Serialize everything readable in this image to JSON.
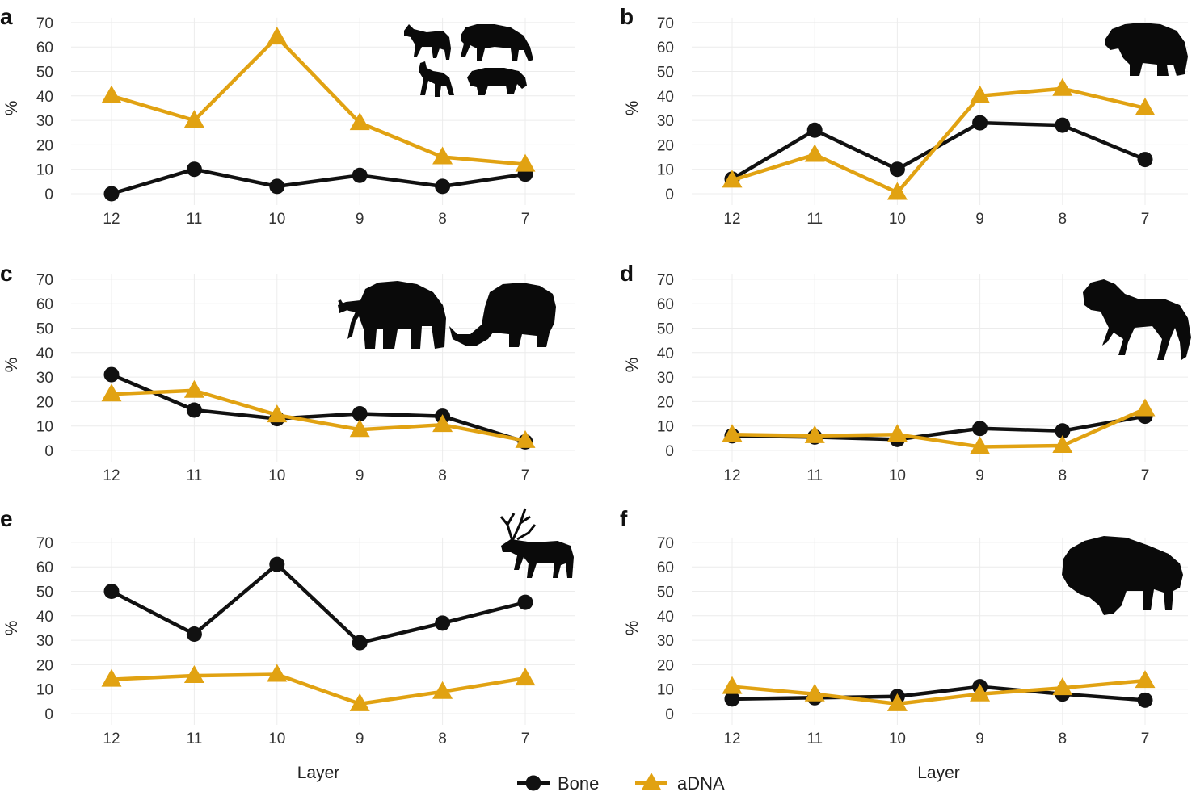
{
  "colors": {
    "bone": "#111111",
    "adna": "#E1A212",
    "grid": "#ececec"
  },
  "legend": {
    "bone_label": "Bone",
    "adna_label": "aDNA"
  },
  "chart_data": [
    {
      "panel": "a",
      "type": "line",
      "title": "",
      "xlabel": "",
      "ylabel": "%",
      "categories": [
        "12",
        "11",
        "10",
        "9",
        "8",
        "7"
      ],
      "yticks": [
        "0",
        "10",
        "20",
        "30",
        "40",
        "50",
        "60",
        "70"
      ],
      "ylim": [
        0,
        70
      ],
      "series": [
        {
          "name": "Bone",
          "values": [
            0,
            10,
            3,
            7.5,
            3,
            8
          ]
        },
        {
          "name": "aDNA",
          "values": [
            40,
            30,
            64,
            29,
            15,
            12
          ]
        }
      ],
      "icons": [
        "wolf-icon",
        "hyena-icon",
        "fox-icon",
        "wolverine-icon"
      ]
    },
    {
      "panel": "b",
      "type": "line",
      "title": "",
      "xlabel": "",
      "ylabel": "%",
      "categories": [
        "12",
        "11",
        "10",
        "9",
        "8",
        "7"
      ],
      "yticks": [
        "0",
        "10",
        "20",
        "30",
        "40",
        "50",
        "60",
        "70"
      ],
      "ylim": [
        0,
        70
      ],
      "series": [
        {
          "name": "Bone",
          "values": [
            6,
            26,
            10,
            29,
            28,
            14
          ]
        },
        {
          "name": "aDNA",
          "values": [
            5.5,
            16,
            0.5,
            40,
            43,
            35
          ]
        }
      ],
      "icons": [
        "bear-icon"
      ]
    },
    {
      "panel": "c",
      "type": "line",
      "title": "",
      "xlabel": "",
      "ylabel": "%",
      "categories": [
        "12",
        "11",
        "10",
        "9",
        "8",
        "7"
      ],
      "yticks": [
        "0",
        "10",
        "20",
        "30",
        "40",
        "50",
        "60",
        "70"
      ],
      "ylim": [
        0,
        70
      ],
      "series": [
        {
          "name": "Bone",
          "values": [
            31,
            16.5,
            13,
            15,
            14,
            3.5
          ]
        },
        {
          "name": "aDNA",
          "values": [
            23,
            24.5,
            14.5,
            8.5,
            10.5,
            4
          ]
        }
      ],
      "icons": [
        "mammoth-icon",
        "woolly-rhino-icon"
      ]
    },
    {
      "panel": "d",
      "type": "line",
      "title": "",
      "xlabel": "",
      "ylabel": "%",
      "categories": [
        "12",
        "11",
        "10",
        "9",
        "8",
        "7"
      ],
      "yticks": [
        "0",
        "10",
        "20",
        "30",
        "40",
        "50",
        "60",
        "70"
      ],
      "ylim": [
        0,
        70
      ],
      "series": [
        {
          "name": "Bone",
          "values": [
            6,
            5.5,
            4.5,
            9,
            8,
            14
          ]
        },
        {
          "name": "aDNA",
          "values": [
            6.5,
            6,
            6.5,
            1.5,
            2,
            17
          ]
        }
      ],
      "icons": [
        "horse-icon"
      ]
    },
    {
      "panel": "e",
      "type": "line",
      "title": "",
      "xlabel": "Layer",
      "ylabel": "%",
      "categories": [
        "12",
        "11",
        "10",
        "9",
        "8",
        "7"
      ],
      "yticks": [
        "0",
        "10",
        "20",
        "30",
        "40",
        "50",
        "60",
        "70"
      ],
      "ylim": [
        0,
        70
      ],
      "series": [
        {
          "name": "Bone",
          "values": [
            50,
            32.5,
            61,
            29,
            37,
            45.5
          ]
        },
        {
          "name": "aDNA",
          "values": [
            14,
            15.5,
            16,
            4,
            9,
            14.5
          ]
        }
      ],
      "icons": [
        "reindeer-icon"
      ]
    },
    {
      "panel": "f",
      "type": "line",
      "title": "",
      "xlabel": "Layer",
      "ylabel": "%",
      "categories": [
        "12",
        "11",
        "10",
        "9",
        "8",
        "7"
      ],
      "yticks": [
        "0",
        "10",
        "20",
        "30",
        "40",
        "50",
        "60",
        "70"
      ],
      "ylim": [
        0,
        70
      ],
      "series": [
        {
          "name": "Bone",
          "values": [
            6,
            6.5,
            7,
            11,
            8,
            5.5
          ]
        },
        {
          "name": "aDNA",
          "values": [
            11,
            8,
            4,
            8,
            10.5,
            13.5
          ]
        }
      ],
      "icons": [
        "bison-icon"
      ]
    }
  ]
}
